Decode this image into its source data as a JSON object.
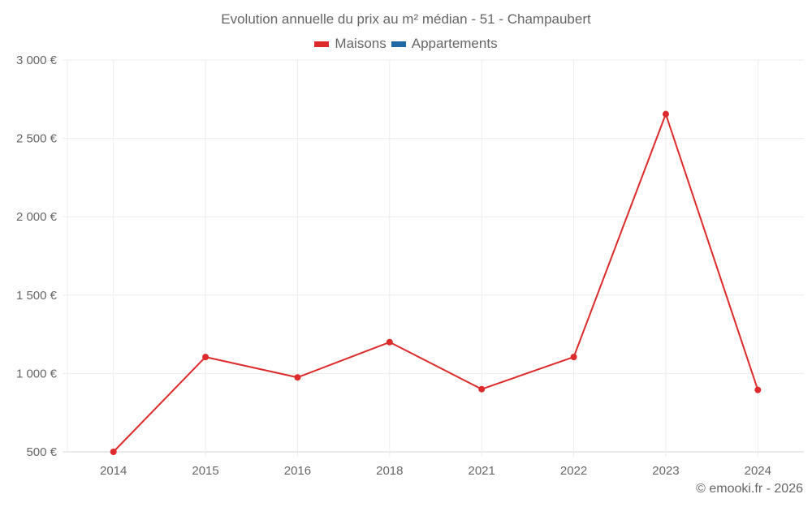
{
  "chart_data": {
    "type": "line",
    "title": "Evolution annuelle du prix au m² médian - 51 - Champaubert",
    "xlabel": "",
    "ylabel": "",
    "categories": [
      "2014",
      "2015",
      "2016",
      "2018",
      "2021",
      "2022",
      "2023",
      "2024"
    ],
    "series": [
      {
        "name": "Maisons",
        "color": "#dd2a2a",
        "values": [
          500,
          1105,
          975,
          1200,
          900,
          1105,
          2655,
          895
        ]
      },
      {
        "name": "Appartements",
        "color": "#1f6aa5",
        "values": []
      }
    ],
    "ylim": [
      500,
      3000
    ],
    "yticks": [
      500,
      1000,
      1500,
      2000,
      2500,
      3000
    ],
    "ytick_labels": [
      "500 €",
      "1 000 €",
      "1 500 €",
      "2 000 €",
      "2 500 €",
      "3 000 €"
    ],
    "grid": true,
    "legend_position": "top"
  },
  "header": {
    "title": "Evolution annuelle du prix au m² médian - 51 - Champaubert"
  },
  "legend": [
    {
      "label": "Maisons",
      "color": "#dd2a2a"
    },
    {
      "label": "Appartements",
      "color": "#1f6aa5"
    }
  ],
  "footer": {
    "credit": "© emooki.fr - 2026"
  }
}
